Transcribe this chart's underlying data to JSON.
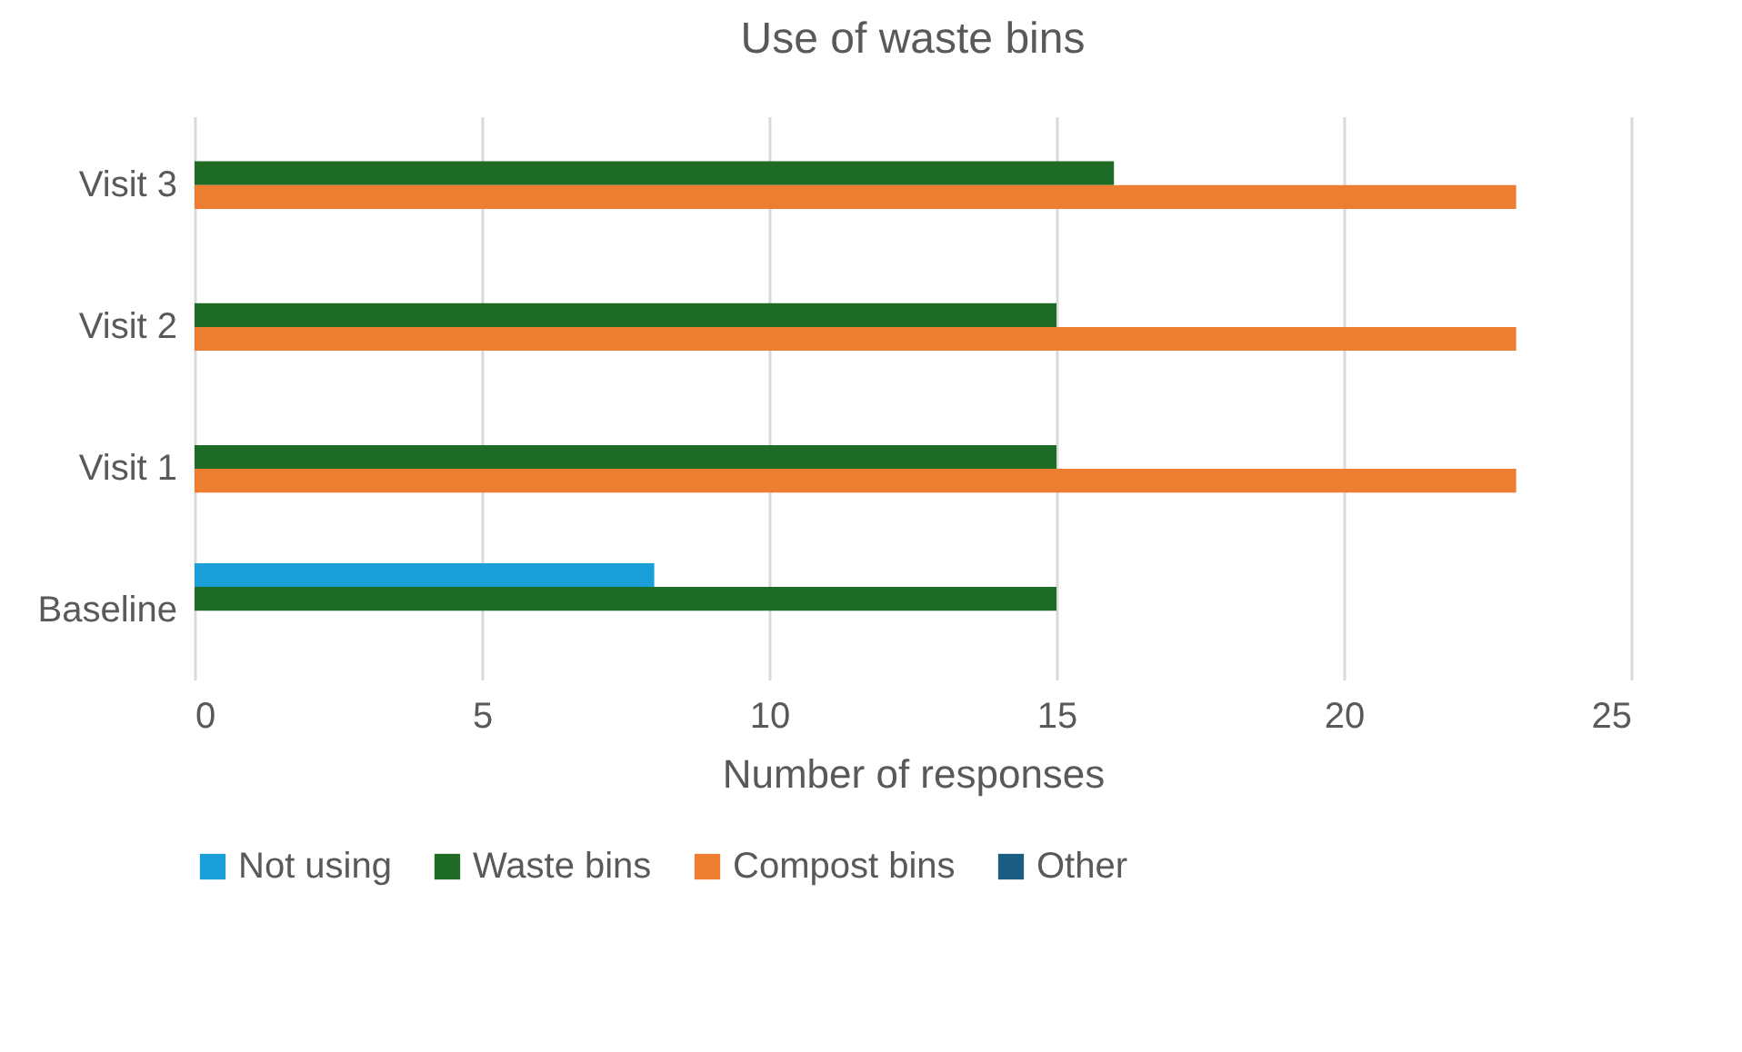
{
  "chart_data": {
    "type": "bar",
    "orientation": "horizontal",
    "title": "Use of waste bins",
    "xlabel": "Number of responses",
    "categories": [
      "Visit 3",
      "Visit 2",
      "Visit 1",
      "Baseline"
    ],
    "series": [
      {
        "name": "Not using",
        "color": "#1a9fd8",
        "values": [
          null,
          null,
          null,
          8
        ]
      },
      {
        "name": "Waste bins",
        "color": "#1e6b25",
        "values": [
          16,
          15,
          15,
          15
        ]
      },
      {
        "name": "Compost bins",
        "color": "#ed7d31",
        "values": [
          23,
          23,
          23,
          null
        ]
      },
      {
        "name": "Other",
        "color": "#1b5e82",
        "values": [
          null,
          null,
          null,
          null
        ]
      }
    ],
    "xlim": [
      0,
      25
    ],
    "xticks": [
      0,
      5,
      10,
      15,
      20,
      25
    ],
    "grid": "x",
    "legend": "bottom"
  }
}
